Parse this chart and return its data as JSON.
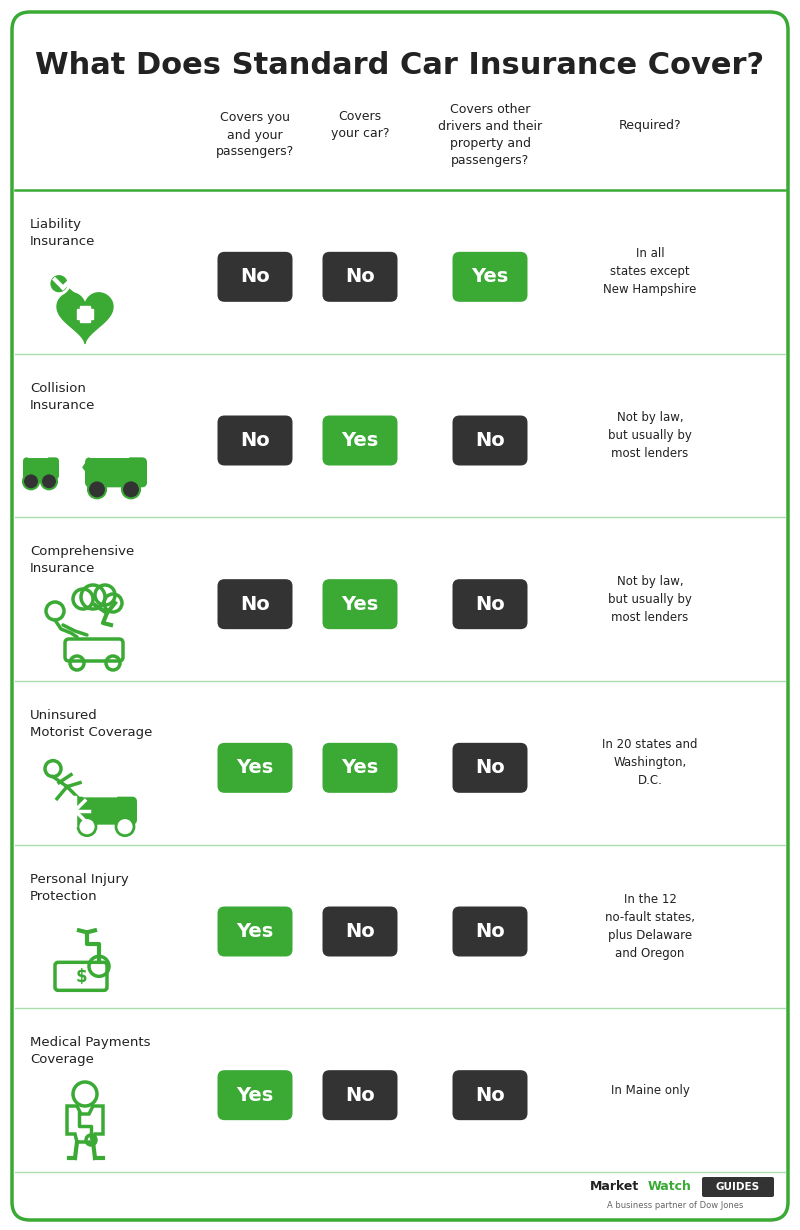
{
  "title": "What Does Standard Car Insurance Cover?",
  "col_headers": [
    "Covers you\nand your\npassengers?",
    "Covers\nyour car?",
    "Covers other\ndrivers and their\nproperty and\npassengers?",
    "Required?"
  ],
  "rows": [
    {
      "name": "Liability\nInsurance",
      "answers": [
        "No",
        "No",
        "Yes"
      ],
      "required": "In all\nstates except\nNew Hampshire"
    },
    {
      "name": "Collision\nInsurance",
      "answers": [
        "No",
        "Yes",
        "No"
      ],
      "required": "Not by law,\nbut usually by\nmost lenders"
    },
    {
      "name": "Comprehensive\nInsurance",
      "answers": [
        "No",
        "Yes",
        "No"
      ],
      "required": "Not by law,\nbut usually by\nmost lenders"
    },
    {
      "name": "Uninsured\nMotorist Coverage",
      "answers": [
        "Yes",
        "Yes",
        "No"
      ],
      "required": "In 20 states and\nWashington,\nD.C."
    },
    {
      "name": "Personal Injury\nProtection",
      "answers": [
        "Yes",
        "No",
        "No"
      ],
      "required": "In the 12\nno-fault states,\nplus Delaware\nand Oregon"
    },
    {
      "name": "Medical Payments\nCoverage",
      "answers": [
        "Yes",
        "No",
        "No"
      ],
      "required": "In Maine only"
    }
  ],
  "green": "#3aaa35",
  "dark": "#333333",
  "border_green": "#3aaa35",
  "bg": "#ffffff",
  "text_dark": "#222222",
  "text_light": "#ffffff",
  "row_line_color": "#aaddaa",
  "header_line_color": "#3aaa35"
}
